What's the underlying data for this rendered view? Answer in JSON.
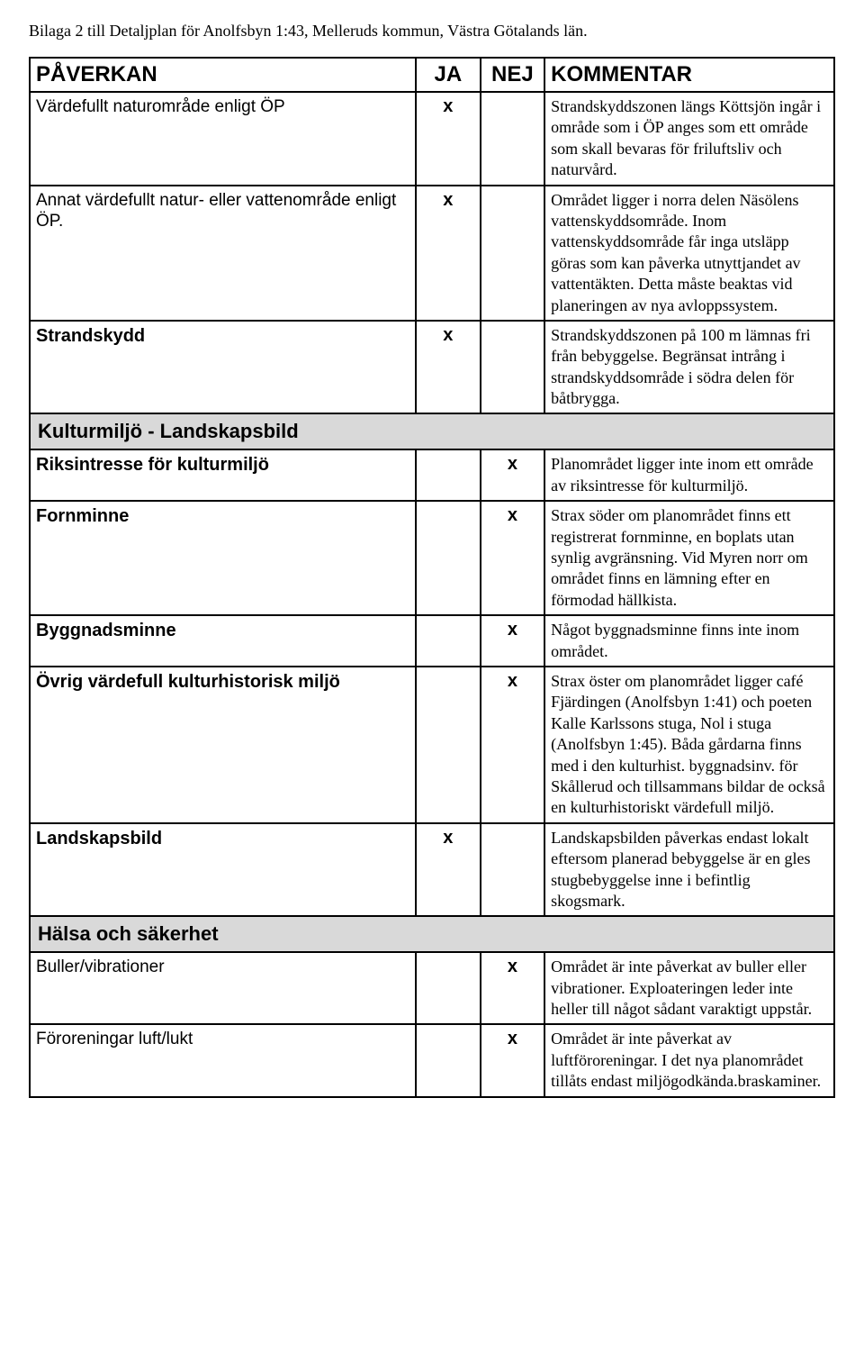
{
  "header": "Bilaga 2 till Detaljplan för Anolfsbyn 1:43, Melleruds kommun, Västra Götalands län.",
  "columns": {
    "c1": "PÅVERKAN",
    "c2": "JA",
    "c3": "NEJ",
    "c4": "KOMMENTAR"
  },
  "mark_glyph": "x",
  "sections": {
    "s1": "Kulturmiljö - Landskapsbild",
    "s2": "Hälsa och säkerhet"
  },
  "rows": {
    "r1": {
      "label": "Värdefullt naturområde enligt ÖP",
      "ja": true,
      "nej": false,
      "comment": "Strandskyddszonen längs Köttsjön ingår i område som i ÖP anges som ett område som skall bevaras för friluftsliv och naturvård."
    },
    "r2": {
      "label": "Annat värdefullt natur- eller vattenområde enligt ÖP.",
      "ja": true,
      "nej": false,
      "comment": "Området ligger i norra delen Näsölens vattenskyddsområde. Inom vattenskyddsområde får inga utsläpp göras som kan påverka utnyttjandet av vattentäkten. Detta måste beaktas vid planeringen av nya avloppssystem."
    },
    "r3": {
      "label": "Strandskydd",
      "ja": true,
      "nej": false,
      "comment": "Strandskyddszonen på 100 m lämnas fri från bebyggelse. Begränsat intrång i strandskyddsområde i södra delen för båtbrygga."
    },
    "r4": {
      "label": "Riksintresse för kulturmiljö",
      "ja": false,
      "nej": true,
      "comment": "Planområdet ligger inte inom ett område av riksintresse för kulturmiljö."
    },
    "r5": {
      "label": "Fornminne",
      "ja": false,
      "nej": true,
      "comment": "Strax söder om planområdet finns ett registrerat fornminne, en boplats utan synlig avgränsning. Vid Myren norr om området finns en lämning efter en förmodad hällkista."
    },
    "r6": {
      "label": "Byggnadsminne",
      "ja": false,
      "nej": true,
      "comment": "Något byggnadsminne finns inte inom området."
    },
    "r7": {
      "label": "Övrig värdefull kulturhistorisk miljö",
      "ja": false,
      "nej": true,
      "comment": "Strax öster om planområdet ligger café Fjärdingen (Anolfsbyn 1:41) och  poeten Kalle Karlssons stuga, Nol i stuga (Anolfsbyn 1:45). Båda gårdarna finns med i den kulturhist. byggnadsinv. för Skållerud och tillsammans bildar de också en kulturhistoriskt värdefull miljö."
    },
    "r8": {
      "label": "Landskapsbild",
      "ja": true,
      "nej": false,
      "comment": "Landskapsbilden påverkas endast lokalt eftersom planerad bebyggelse är en gles stugbebyggelse inne i befintlig skogsmark."
    },
    "r9": {
      "label": "Buller/vibrationer",
      "ja": false,
      "nej": true,
      "comment": "Området är inte påverkat av buller eller vibrationer. Exploateringen leder inte heller till något sådant varaktigt uppstår."
    },
    "r10": {
      "label": "Föroreningar luft/lukt",
      "ja": false,
      "nej": true,
      "comment": "Området är inte påverkat av luftföroreningar. I det nya planområdet tillåts endast miljögodkända.braskaminer."
    }
  }
}
